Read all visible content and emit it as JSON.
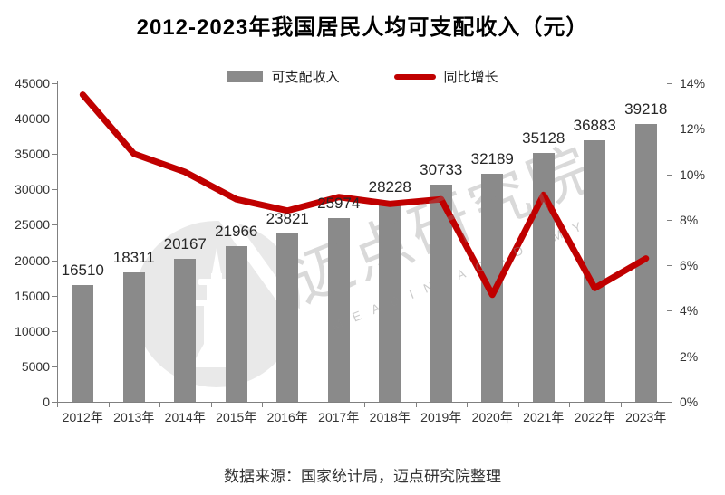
{
  "title": "2012-2023年我国居民人均可支配收入（元）",
  "legend": {
    "bar_label": "可支配收入",
    "line_label": "同比增长"
  },
  "chart_data": {
    "type": "bar+line",
    "categories": [
      "2012年",
      "2013年",
      "2014年",
      "2015年",
      "2016年",
      "2017年",
      "2018年",
      "2019年",
      "2020年",
      "2021年",
      "2022年",
      "2023年"
    ],
    "series": [
      {
        "name": "可支配收入",
        "type": "bar",
        "axis": "left",
        "color": "#8a8a8a",
        "values": [
          16510,
          18311,
          20167,
          21966,
          23821,
          25974,
          28228,
          30733,
          32189,
          35128,
          36883,
          39218
        ]
      },
      {
        "name": "同比增长",
        "type": "line",
        "axis": "right",
        "color": "#c00000",
        "unit": "%",
        "values": [
          13.5,
          10.9,
          10.1,
          8.9,
          8.4,
          9.0,
          8.7,
          8.9,
          4.7,
          9.1,
          5.0,
          6.3
        ]
      }
    ],
    "left_axis": {
      "min": 0,
      "max": 45000,
      "step": 5000,
      "tick_labels": [
        "45000",
        "40000",
        "35000",
        "30000",
        "25000",
        "20000",
        "15000",
        "10000",
        "5000",
        "0"
      ]
    },
    "right_axis": {
      "min": 0,
      "max": 14,
      "step": 2,
      "tick_labels": [
        "14%",
        "12%",
        "10%",
        "8%",
        "6%",
        "4%",
        "2%",
        "0%"
      ]
    },
    "grid": false,
    "legend_position": "top-center",
    "title": "2012-2023年我国居民人均可支配收入（元）"
  },
  "watermark": {
    "text_cn": "迈点研究院",
    "text_en": "MEADIN ACADEMY",
    "logo": "meadin-tower-logo"
  },
  "source": "数据来源：国家统计局，迈点研究院整理",
  "colors": {
    "bar": "#8a8a8a",
    "line": "#c00000",
    "axis": "#808080",
    "title": "#000000"
  }
}
